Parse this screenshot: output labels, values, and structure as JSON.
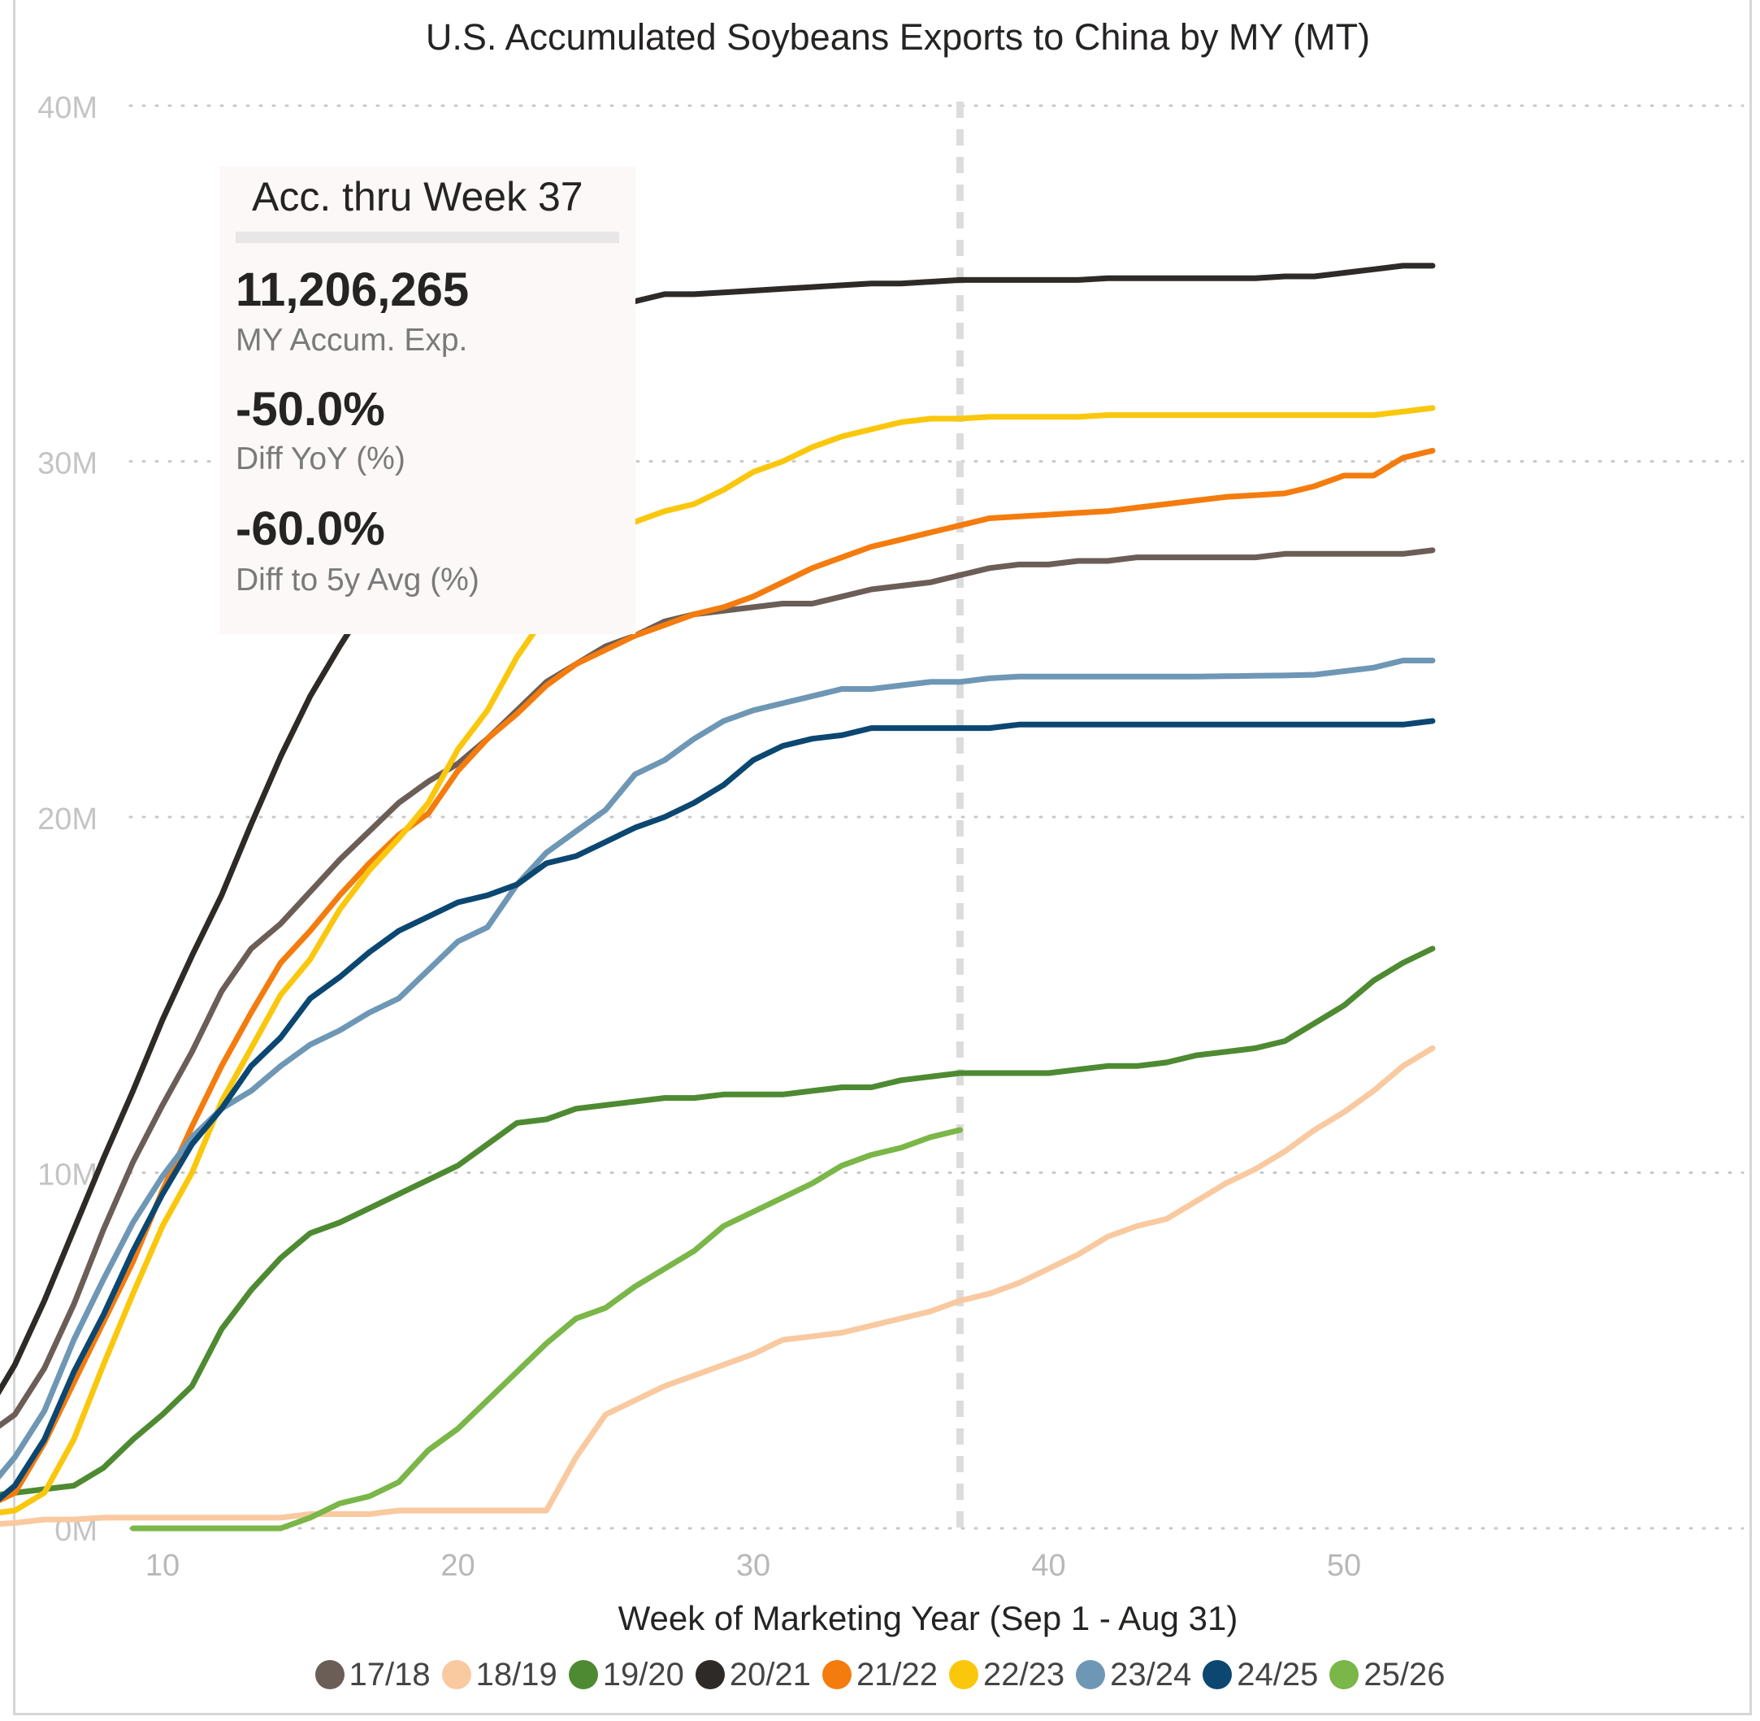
{
  "chart_data": {
    "type": "line",
    "title": "U.S. Accumulated Soybeans Exports to China by MY (MT)",
    "xlabel": "Week of Marketing Year (Sep 1 - Aug 31)",
    "ylabel": "",
    "xlim": [
      0,
      55
    ],
    "ylim": [
      0,
      40000000
    ],
    "x_ticks": [
      10,
      20,
      30,
      40,
      50
    ],
    "y_ticks": [
      0,
      10000000,
      20000000,
      30000000,
      40000000
    ],
    "y_tick_labels": [
      "0M",
      "10M",
      "20M",
      "30M",
      "40M"
    ],
    "grid": "horizontal dotted",
    "reference_line_week": 37,
    "legend_position": "bottom",
    "series": [
      {
        "name": "17/18",
        "color": "#6b5e57",
        "x": [
          1,
          2,
          3,
          4,
          5,
          6,
          7,
          8,
          9,
          10,
          11,
          12,
          13,
          14,
          15,
          16,
          17,
          18,
          19,
          20,
          21,
          22,
          23,
          24,
          25,
          26,
          27,
          28,
          29,
          30,
          31,
          32,
          33,
          34,
          35,
          36,
          37,
          38,
          39,
          40,
          41,
          42,
          43,
          44,
          45,
          46,
          47,
          48,
          49,
          50,
          51,
          52,
          53
        ],
        "values": [
          700000,
          1500000,
          2100000,
          2600000,
          3200000,
          4500000,
          6300000,
          8400000,
          10300000,
          11900000,
          13400000,
          15100000,
          16300000,
          17000000,
          17900000,
          18800000,
          19600000,
          20400000,
          21000000,
          21500000,
          22200000,
          23000000,
          23800000,
          24300000,
          24800000,
          25100000,
          25500000,
          25700000,
          25800000,
          25900000,
          26000000,
          26000000,
          26200000,
          26400000,
          26500000,
          26600000,
          26800000,
          27000000,
          27100000,
          27100000,
          27200000,
          27200000,
          27300000,
          27300000,
          27300000,
          27300000,
          27300000,
          27400000,
          27400000,
          27400000,
          27400000,
          27400000,
          27500000
        ]
      },
      {
        "name": "18/19",
        "color": "#f9c9a0",
        "x": [
          1,
          2,
          3,
          4,
          5,
          6,
          7,
          8,
          9,
          10,
          11,
          12,
          13,
          14,
          15,
          16,
          17,
          18,
          19,
          20,
          21,
          22,
          23,
          24,
          25,
          26,
          27,
          28,
          29,
          30,
          31,
          32,
          33,
          34,
          35,
          36,
          37,
          38,
          39,
          40,
          41,
          42,
          43,
          44,
          45,
          46,
          47,
          48,
          49,
          50,
          51,
          52,
          53
        ],
        "values": [
          100000,
          100000,
          100000,
          100000,
          150000,
          250000,
          250000,
          300000,
          300000,
          300000,
          300000,
          300000,
          300000,
          300000,
          400000,
          400000,
          400000,
          500000,
          500000,
          500000,
          500000,
          500000,
          500000,
          2000000,
          3200000,
          3600000,
          4000000,
          4300000,
          4600000,
          4900000,
          5300000,
          5400000,
          5500000,
          5700000,
          5900000,
          6100000,
          6400000,
          6600000,
          6900000,
          7300000,
          7700000,
          8200000,
          8500000,
          8700000,
          9200000,
          9700000,
          10100000,
          10600000,
          11200000,
          11700000,
          12300000,
          13000000,
          13500000
        ]
      },
      {
        "name": "19/20",
        "color": "#4e8a32",
        "x": [
          1,
          2,
          3,
          4,
          5,
          6,
          7,
          8,
          9,
          10,
          11,
          12,
          13,
          14,
          15,
          16,
          17,
          18,
          19,
          20,
          21,
          22,
          23,
          24,
          25,
          26,
          27,
          28,
          29,
          30,
          31,
          32,
          33,
          34,
          35,
          36,
          37,
          38,
          39,
          40,
          41,
          42,
          43,
          44,
          45,
          46,
          47,
          48,
          49,
          50,
          51,
          52,
          53
        ],
        "values": [
          300000,
          500000,
          700000,
          900000,
          1000000,
          1100000,
          1200000,
          1700000,
          2500000,
          3200000,
          4000000,
          5600000,
          6700000,
          7600000,
          8300000,
          8600000,
          9000000,
          9400000,
          9800000,
          10200000,
          10800000,
          11400000,
          11500000,
          11800000,
          11900000,
          12000000,
          12100000,
          12100000,
          12200000,
          12200000,
          12200000,
          12300000,
          12400000,
          12400000,
          12600000,
          12700000,
          12800000,
          12800000,
          12800000,
          12800000,
          12900000,
          13000000,
          13000000,
          13100000,
          13300000,
          13400000,
          13500000,
          13700000,
          14200000,
          14700000,
          15400000,
          15900000,
          16300000
        ]
      },
      {
        "name": "20/21",
        "color": "#2d2a27",
        "x": [
          1,
          2,
          3,
          4,
          5,
          6,
          7,
          8,
          9,
          10,
          11,
          12,
          13,
          14,
          15,
          16,
          17,
          18,
          19,
          20,
          21,
          22,
          23,
          24,
          25,
          26,
          27,
          28,
          29,
          30,
          31,
          32,
          33,
          34,
          35,
          36,
          37,
          38,
          39,
          40,
          41,
          42,
          43,
          44,
          45,
          46,
          47,
          48,
          49,
          50,
          51,
          52,
          53
        ],
        "values": [
          400000,
          1500000,
          2300000,
          3200000,
          4600000,
          6400000,
          8400000,
          10400000,
          12300000,
          14300000,
          16100000,
          17800000,
          19800000,
          21700000,
          23400000,
          24800000,
          26100000,
          27200000,
          28500000,
          29900000,
          31300000,
          32500000,
          33500000,
          33900000,
          34200000,
          34500000,
          34700000,
          34700000,
          34750000,
          34800000,
          34850000,
          34900000,
          34950000,
          35000000,
          35000000,
          35050000,
          35100000,
          35100000,
          35100000,
          35100000,
          35100000,
          35150000,
          35150000,
          35150000,
          35150000,
          35150000,
          35150000,
          35200000,
          35200000,
          35300000,
          35400000,
          35500000,
          35500000
        ]
      },
      {
        "name": "21/22",
        "color": "#f47c0e",
        "x": [
          1,
          2,
          3,
          4,
          5,
          6,
          7,
          8,
          9,
          10,
          11,
          12,
          13,
          14,
          15,
          16,
          17,
          18,
          19,
          20,
          21,
          22,
          23,
          24,
          25,
          26,
          27,
          28,
          29,
          30,
          31,
          32,
          33,
          34,
          35,
          36,
          37,
          38,
          39,
          40,
          41,
          42,
          43,
          44,
          45,
          46,
          47,
          48,
          49,
          50,
          51,
          52,
          53
        ],
        "values": [
          100000,
          200000,
          400000,
          600000,
          1000000,
          2400000,
          4100000,
          5800000,
          7500000,
          9500000,
          11300000,
          13000000,
          14500000,
          15900000,
          16800000,
          17800000,
          18700000,
          19500000,
          20100000,
          21300000,
          22200000,
          22900000,
          23700000,
          24300000,
          24700000,
          25100000,
          25400000,
          25700000,
          25900000,
          26200000,
          26600000,
          27000000,
          27300000,
          27600000,
          27800000,
          28000000,
          28200000,
          28400000,
          28450000,
          28500000,
          28550000,
          28600000,
          28700000,
          28800000,
          28900000,
          29000000,
          29050000,
          29100000,
          29300000,
          29600000,
          29600000,
          30100000,
          30300000
        ]
      },
      {
        "name": "22/23",
        "color": "#fac70d",
        "x": [
          1,
          2,
          3,
          4,
          5,
          6,
          7,
          8,
          9,
          10,
          11,
          12,
          13,
          14,
          15,
          16,
          17,
          18,
          19,
          20,
          21,
          22,
          23,
          24,
          25,
          26,
          27,
          28,
          29,
          30,
          31,
          32,
          33,
          34,
          35,
          36,
          37,
          38,
          39,
          40,
          41,
          42,
          43,
          44,
          45,
          46,
          47,
          48,
          49,
          50,
          51,
          52,
          53
        ],
        "values": [
          100000,
          150000,
          250000,
          400000,
          500000,
          1000000,
          2500000,
          4600000,
          6600000,
          8500000,
          10000000,
          12000000,
          13500000,
          15000000,
          16000000,
          17400000,
          18500000,
          19400000,
          20400000,
          21900000,
          23000000,
          24500000,
          25700000,
          26800000,
          27800000,
          28300000,
          28600000,
          28800000,
          29200000,
          29700000,
          30000000,
          30400000,
          30700000,
          30900000,
          31100000,
          31200000,
          31200000,
          31250000,
          31250000,
          31250000,
          31250000,
          31300000,
          31300000,
          31300000,
          31300000,
          31300000,
          31300000,
          31300000,
          31300000,
          31300000,
          31300000,
          31400000,
          31500000
        ]
      },
      {
        "name": "23/24",
        "color": "#6e97b5",
        "x": [
          1,
          2,
          3,
          4,
          5,
          6,
          7,
          8,
          9,
          10,
          11,
          12,
          13,
          14,
          15,
          16,
          17,
          18,
          19,
          20,
          21,
          22,
          23,
          24,
          25,
          26,
          27,
          28,
          29,
          30,
          31,
          32,
          33,
          34,
          35,
          36,
          37,
          38,
          39,
          40,
          41,
          42,
          43,
          44,
          45,
          46,
          47,
          48,
          49,
          50,
          51,
          52,
          53
        ],
        "values": [
          200000,
          400000,
          600000,
          1000000,
          2000000,
          3300000,
          5300000,
          7000000,
          8600000,
          9900000,
          11000000,
          11800000,
          12300000,
          13000000,
          13600000,
          14000000,
          14500000,
          14900000,
          15700000,
          16500000,
          16900000,
          18100000,
          19000000,
          19600000,
          20200000,
          21200000,
          21600000,
          22200000,
          22700000,
          23000000,
          23200000,
          23400000,
          23600000,
          23600000,
          23700000,
          23800000,
          23800000,
          23900000,
          23950000,
          23950000,
          23950000,
          23950000,
          23950000,
          23950000,
          23950000,
          23960000,
          23970000,
          23980000,
          24000000,
          24100000,
          24200000,
          24400000,
          24400000
        ]
      },
      {
        "name": "24/25",
        "color": "#0b4771",
        "x": [
          1,
          2,
          3,
          4,
          5,
          6,
          7,
          8,
          9,
          10,
          11,
          12,
          13,
          14,
          15,
          16,
          17,
          18,
          19,
          20,
          21,
          22,
          23,
          24,
          25,
          26,
          27,
          28,
          29,
          30,
          31,
          32,
          33,
          34,
          35,
          36,
          37,
          38,
          39,
          40,
          41,
          42,
          43,
          44,
          45,
          46,
          47,
          48,
          49,
          50,
          51,
          52,
          53
        ],
        "values": [
          100000,
          200000,
          300000,
          500000,
          1200000,
          2500000,
          4400000,
          6000000,
          7800000,
          9400000,
          10800000,
          11800000,
          13000000,
          13800000,
          14900000,
          15500000,
          16200000,
          16800000,
          17200000,
          17600000,
          17800000,
          18100000,
          18700000,
          18900000,
          19300000,
          19700000,
          20000000,
          20400000,
          20900000,
          21600000,
          22000000,
          22200000,
          22300000,
          22500000,
          22500000,
          22500000,
          22500000,
          22500000,
          22600000,
          22600000,
          22600000,
          22600000,
          22600000,
          22600000,
          22600000,
          22600000,
          22600000,
          22600000,
          22600000,
          22600000,
          22600000,
          22600000,
          22700000
        ]
      },
      {
        "name": "25/26",
        "color": "#7ab648",
        "x": [
          9,
          10,
          11,
          12,
          13,
          14,
          15,
          16,
          17,
          18,
          19,
          20,
          21,
          22,
          23,
          24,
          25,
          26,
          27,
          28,
          29,
          30,
          31,
          32,
          33,
          34,
          35,
          36,
          37
        ],
        "values": [
          0,
          0,
          0,
          0,
          0,
          0,
          300000,
          700000,
          900000,
          1300000,
          2200000,
          2800000,
          3600000,
          4400000,
          5200000,
          5900000,
          6200000,
          6800000,
          7300000,
          7800000,
          8500000,
          8900000,
          9300000,
          9700000,
          10200000,
          10500000,
          10700000,
          11000000,
          11200000
        ]
      }
    ]
  },
  "kpi": {
    "title": "Acc. thru Week 37",
    "value1": "11,206,265",
    "label1": "MY Accum. Exp.",
    "value2": "-50.0%",
    "label2": "Diff YoY (%)",
    "value3": "-60.0%",
    "label3": "Diff to 5y Avg (%)"
  }
}
